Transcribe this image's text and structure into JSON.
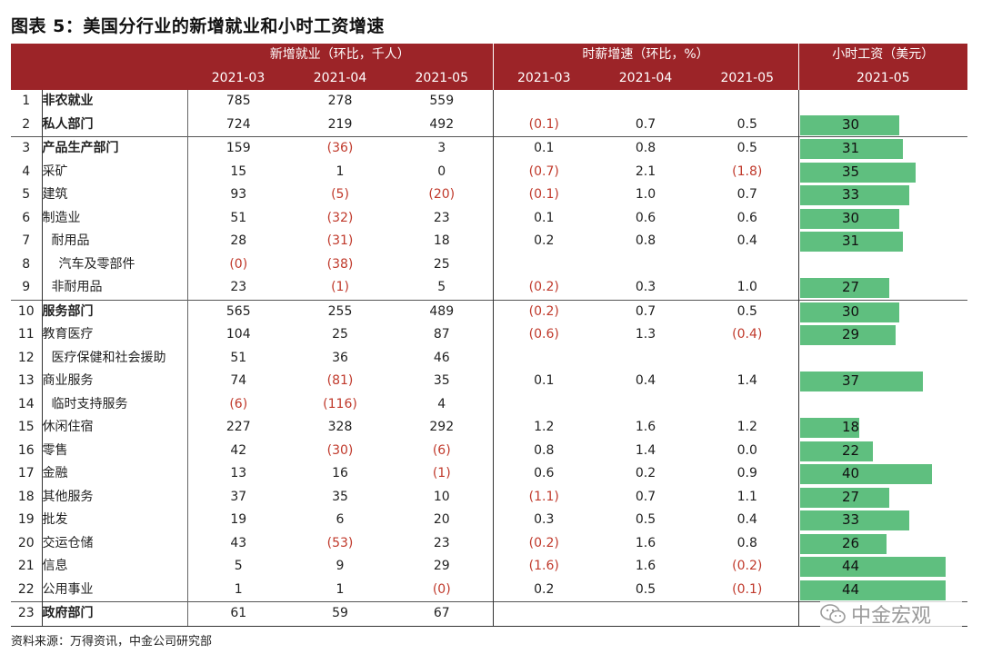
{
  "title": "图表 5：美国分行业的新增就业和小时工资增速",
  "header": {
    "group_jobs": "新增就业（环比，千人）",
    "group_wage_growth": "时薪增速（环比，%）",
    "group_wage": "小时工资（美元）",
    "months_jobs": [
      "2021-03",
      "2021-04",
      "2021-05"
    ],
    "months_growth": [
      "2021-03",
      "2021-04",
      "2021-05"
    ],
    "month_wage": "2021-05"
  },
  "chart_data": {
    "type": "table",
    "bar_scale_max": 44,
    "rows": [
      {
        "n": "1",
        "name": "非农就业",
        "bold": true,
        "indent": 0,
        "jobs": [
          "785",
          "278",
          "559"
        ],
        "growth": [
          "",
          "",
          ""
        ],
        "wage": ""
      },
      {
        "n": "2",
        "name": "私人部门",
        "bold": true,
        "indent": 0,
        "jobs": [
          "724",
          "219",
          "492"
        ],
        "growth": [
          "(0.1)",
          "0.7",
          "0.5"
        ],
        "wage": "30"
      },
      {
        "n": "3",
        "name": "产品生产部门",
        "bold": true,
        "indent": 0,
        "sec": true,
        "jobs": [
          "159",
          "(36)",
          "3"
        ],
        "growth": [
          "0.1",
          "0.8",
          "0.5"
        ],
        "wage": "31"
      },
      {
        "n": "4",
        "name": "采矿",
        "bold": false,
        "indent": 0,
        "jobs": [
          "15",
          "1",
          "0"
        ],
        "growth": [
          "(0.7)",
          "2.1",
          "(1.8)"
        ],
        "wage": "35"
      },
      {
        "n": "5",
        "name": "建筑",
        "bold": false,
        "indent": 0,
        "jobs": [
          "93",
          "(5)",
          "(20)"
        ],
        "growth": [
          "(0.1)",
          "1.0",
          "0.7"
        ],
        "wage": "33"
      },
      {
        "n": "6",
        "name": "制造业",
        "bold": false,
        "indent": 0,
        "jobs": [
          "51",
          "(32)",
          "23"
        ],
        "growth": [
          "0.1",
          "0.6",
          "0.6"
        ],
        "wage": "30"
      },
      {
        "n": "7",
        "name": "耐用品",
        "bold": false,
        "indent": 1,
        "jobs": [
          "28",
          "(31)",
          "18"
        ],
        "growth": [
          "0.2",
          "0.8",
          "0.4"
        ],
        "wage": "31"
      },
      {
        "n": "8",
        "name": "汽车及零部件",
        "bold": false,
        "indent": 2,
        "jobs": [
          "(0)",
          "(38)",
          "25"
        ],
        "growth": [
          "",
          "",
          ""
        ],
        "wage": ""
      },
      {
        "n": "9",
        "name": "非耐用品",
        "bold": false,
        "indent": 1,
        "jobs": [
          "23",
          "(1)",
          "5"
        ],
        "growth": [
          "(0.2)",
          "0.3",
          "1.0"
        ],
        "wage": "27"
      },
      {
        "n": "10",
        "name": "服务部门",
        "bold": true,
        "indent": 0,
        "sec": true,
        "jobs": [
          "565",
          "255",
          "489"
        ],
        "growth": [
          "(0.2)",
          "0.7",
          "0.5"
        ],
        "wage": "30"
      },
      {
        "n": "11",
        "name": "教育医疗",
        "bold": false,
        "indent": 0,
        "jobs": [
          "104",
          "25",
          "87"
        ],
        "growth": [
          "(0.6)",
          "1.3",
          "(0.4)"
        ],
        "wage": "29"
      },
      {
        "n": "12",
        "name": "医疗保健和社会援助",
        "bold": false,
        "indent": 1,
        "jobs": [
          "51",
          "36",
          "46"
        ],
        "growth": [
          "",
          "",
          ""
        ],
        "wage": ""
      },
      {
        "n": "13",
        "name": "商业服务",
        "bold": false,
        "indent": 0,
        "jobs": [
          "74",
          "(81)",
          "35"
        ],
        "growth": [
          "0.1",
          "0.4",
          "1.4"
        ],
        "wage": "37"
      },
      {
        "n": "14",
        "name": "临时支持服务",
        "bold": false,
        "indent": 1,
        "jobs": [
          "(6)",
          "(116)",
          "4"
        ],
        "growth": [
          "",
          "",
          ""
        ],
        "wage": ""
      },
      {
        "n": "15",
        "name": "休闲住宿",
        "bold": false,
        "indent": 0,
        "jobs": [
          "227",
          "328",
          "292"
        ],
        "growth": [
          "1.2",
          "1.6",
          "1.2"
        ],
        "wage": "18"
      },
      {
        "n": "16",
        "name": "零售",
        "bold": false,
        "indent": 0,
        "jobs": [
          "42",
          "(30)",
          "(6)"
        ],
        "growth": [
          "0.8",
          "1.4",
          "0.0"
        ],
        "wage": "22"
      },
      {
        "n": "17",
        "name": "金融",
        "bold": false,
        "indent": 0,
        "jobs": [
          "13",
          "16",
          "(1)"
        ],
        "growth": [
          "0.6",
          "0.2",
          "0.9"
        ],
        "wage": "40"
      },
      {
        "n": "18",
        "name": "其他服务",
        "bold": false,
        "indent": 0,
        "jobs": [
          "37",
          "35",
          "10"
        ],
        "growth": [
          "(1.1)",
          "0.7",
          "1.1"
        ],
        "wage": "27"
      },
      {
        "n": "19",
        "name": "批发",
        "bold": false,
        "indent": 0,
        "jobs": [
          "19",
          "6",
          "20"
        ],
        "growth": [
          "0.3",
          "0.5",
          "0.4"
        ],
        "wage": "33"
      },
      {
        "n": "20",
        "name": "交运仓储",
        "bold": false,
        "indent": 0,
        "jobs": [
          "43",
          "(53)",
          "23"
        ],
        "growth": [
          "(0.2)",
          "1.6",
          "0.8"
        ],
        "wage": "26"
      },
      {
        "n": "21",
        "name": "信息",
        "bold": false,
        "indent": 0,
        "jobs": [
          "5",
          "9",
          "29"
        ],
        "growth": [
          "(1.6)",
          "1.6",
          "(0.2)"
        ],
        "wage": "44"
      },
      {
        "n": "22",
        "name": "公用事业",
        "bold": false,
        "indent": 0,
        "jobs": [
          "1",
          "1",
          "(0)"
        ],
        "growth": [
          "0.2",
          "0.5",
          "(0.1)"
        ],
        "wage": "44"
      },
      {
        "n": "23",
        "name": "政府部门",
        "bold": true,
        "indent": 0,
        "sec": true,
        "jobs": [
          "61",
          "59",
          "67"
        ],
        "growth": [
          "",
          "",
          ""
        ],
        "wage": ""
      }
    ]
  },
  "colors": {
    "header_bg": "#9c2428",
    "bar": "#5fbf7f",
    "negative": "#c0392b"
  },
  "source": "资料来源：万得资讯，中金公司研究部",
  "watermark": {
    "icon": "wechat-icon",
    "text": "中金宏观"
  }
}
